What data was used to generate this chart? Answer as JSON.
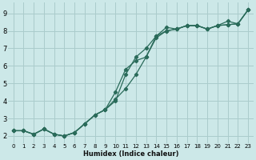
{
  "xlabel": "Humidex (Indice chaleur)",
  "bg_color": "#cce8e8",
  "grid_color": "#aacccc",
  "line_color": "#2a6b5a",
  "xlim": [
    -0.5,
    23.5
  ],
  "ylim": [
    1.6,
    9.6
  ],
  "xticks": [
    0,
    1,
    2,
    3,
    4,
    5,
    6,
    7,
    8,
    9,
    10,
    11,
    12,
    13,
    14,
    15,
    16,
    17,
    18,
    19,
    20,
    21,
    22,
    23
  ],
  "yticks": [
    2,
    3,
    4,
    5,
    6,
    7,
    8,
    9
  ],
  "line1_y": [
    2.3,
    2.3,
    2.1,
    2.4,
    2.1,
    2.0,
    2.2,
    2.7,
    3.2,
    3.5,
    4.1,
    4.7,
    5.5,
    6.5,
    7.7,
    8.0,
    8.1,
    8.3,
    8.3,
    8.1,
    8.3,
    8.55,
    8.4,
    9.2
  ],
  "line2_y": [
    2.3,
    2.3,
    2.1,
    2.4,
    2.1,
    2.0,
    2.2,
    2.7,
    3.2,
    3.5,
    4.5,
    5.8,
    6.3,
    6.5,
    7.6,
    8.0,
    8.1,
    8.3,
    8.3,
    8.1,
    8.3,
    8.35,
    8.4,
    9.2
  ],
  "line3_y": [
    2.3,
    2.3,
    2.1,
    2.4,
    2.1,
    2.0,
    2.2,
    2.7,
    3.2,
    3.5,
    4.0,
    5.5,
    6.5,
    7.0,
    7.7,
    8.2,
    8.1,
    8.3,
    8.3,
    8.1,
    8.3,
    8.35,
    8.4,
    9.2
  ],
  "xlabel_fontsize": 6.0,
  "tick_fontsize_x": 5.0,
  "tick_fontsize_y": 6.0
}
